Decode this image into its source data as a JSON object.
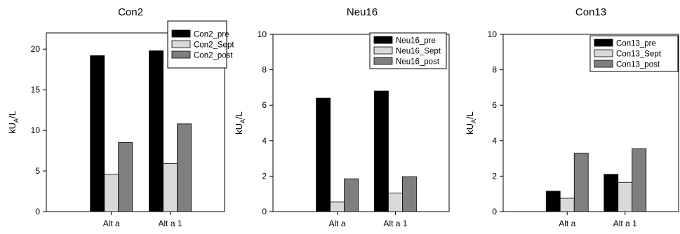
{
  "chart_data": [
    {
      "type": "bar",
      "title": "Con2",
      "ylabel": "kU",
      "ylabel_sub": "A",
      "ylabel_suffix": "/L",
      "xlabel": "",
      "categories": [
        "Alt a",
        "Alt a 1"
      ],
      "ylim": [
        0,
        22
      ],
      "yticks": [
        0,
        5,
        10,
        15,
        20
      ],
      "legend_position": "top-right",
      "series": [
        {
          "name": "Con2_pre",
          "color": "#000000",
          "values": [
            19.2,
            19.8
          ]
        },
        {
          "name": "Con2_Sept",
          "color": "#d9d9d9",
          "values": [
            4.6,
            5.9
          ]
        },
        {
          "name": "Con2_post",
          "color": "#7f7f7f",
          "values": [
            8.5,
            10.8
          ]
        }
      ]
    },
    {
      "type": "bar",
      "title": "Neu16",
      "ylabel": "kU",
      "ylabel_sub": "A",
      "ylabel_suffix": "/L",
      "xlabel": "",
      "categories": [
        "Alt a",
        "Alt a 1"
      ],
      "ylim": [
        0,
        10
      ],
      "yticks": [
        0,
        2,
        4,
        6,
        8,
        10
      ],
      "legend_position": "top-right",
      "series": [
        {
          "name": "Neu16_pre",
          "color": "#000000",
          "values": [
            6.4,
            6.8
          ]
        },
        {
          "name": "Neu16_Sept",
          "color": "#d9d9d9",
          "values": [
            0.55,
            1.05
          ]
        },
        {
          "name": "Neu16_post",
          "color": "#7f7f7f",
          "values": [
            1.85,
            1.97
          ]
        }
      ]
    },
    {
      "type": "bar",
      "title": "Con13",
      "ylabel": "kU",
      "ylabel_sub": "A",
      "ylabel_suffix": "/L",
      "xlabel": "",
      "categories": [
        "Alt a",
        "Alt a 1"
      ],
      "ylim": [
        0,
        10
      ],
      "yticks": [
        0,
        2,
        4,
        6,
        8,
        10
      ],
      "legend_position": "top-right",
      "series": [
        {
          "name": "Con13_pre",
          "color": "#000000",
          "values": [
            1.15,
            2.1
          ]
        },
        {
          "name": "Con13_Sept",
          "color": "#d9d9d9",
          "values": [
            0.75,
            1.65
          ]
        },
        {
          "name": "Con13_post",
          "color": "#7f7f7f",
          "values": [
            3.3,
            3.55
          ]
        }
      ]
    }
  ]
}
